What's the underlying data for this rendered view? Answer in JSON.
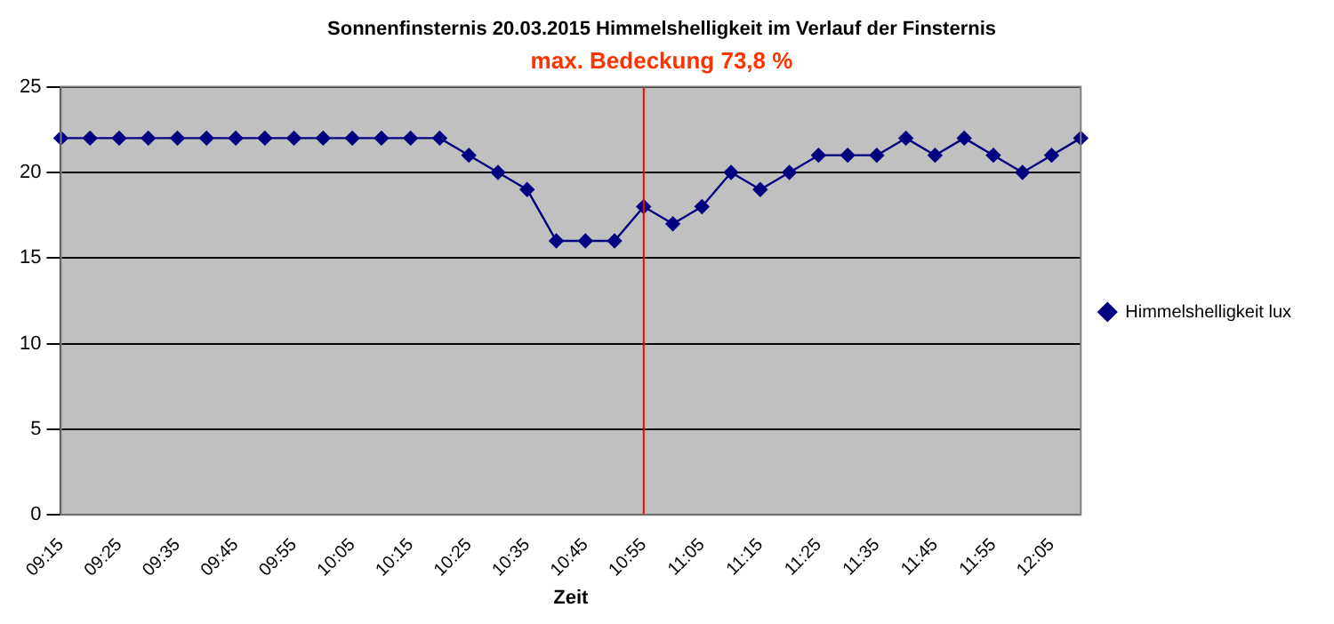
{
  "chart_data": {
    "type": "line",
    "title": "Sonnenfinsternis 20.03.2015 Himmelshelligkeit im Verlauf der Finsternis",
    "subtitle": "max. Bedeckung 73,8 %",
    "xlabel": "Zeit",
    "categories": [
      "09:15",
      null,
      "09:25",
      null,
      "09:35",
      null,
      "09:45",
      null,
      "09:55",
      null,
      "10:05",
      null,
      "10:15",
      null,
      "10:25",
      null,
      "10:35",
      null,
      "10:45",
      null,
      "10:55",
      null,
      "11:05",
      null,
      "11:15",
      null,
      "11:25",
      null,
      "11:35",
      null,
      "11:45",
      null,
      "11:55",
      null,
      "12:05",
      null
    ],
    "series": [
      {
        "name": "Himmelshelligkeit lux",
        "color": "#000080",
        "values": [
          22,
          22,
          22,
          22,
          22,
          22,
          22,
          22,
          22,
          22,
          22,
          22,
          22,
          22,
          21,
          20,
          19,
          16,
          16,
          16,
          18,
          17,
          18,
          20,
          19,
          20,
          21,
          21,
          21,
          22,
          21,
          22,
          21,
          20,
          21,
          22
        ]
      }
    ],
    "ylim": [
      0,
      25
    ],
    "yticks": [
      0,
      5,
      10,
      15,
      20,
      25
    ],
    "grid": "y",
    "legend": "right",
    "marker": "diamond",
    "line_style": "solid",
    "ref_lines": [
      {
        "axis": "x",
        "value": "10:55",
        "color": "#ff0000"
      }
    ]
  }
}
